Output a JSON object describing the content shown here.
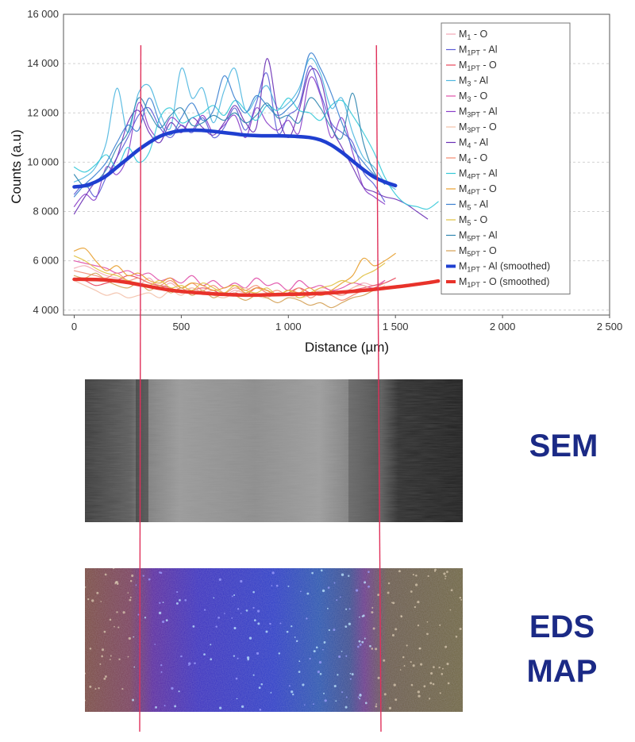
{
  "chart_data": {
    "type": "line",
    "xlabel": "Distance (µm)",
    "ylabel": "Counts (a.u)",
    "xlim": [
      -50,
      2500
    ],
    "ylim": [
      3800,
      16000
    ],
    "x_ticks": [
      0,
      500,
      1000,
      1500,
      2000,
      2500
    ],
    "x_tick_labels": [
      "0",
      "500",
      "1 000",
      "1 500",
      "2 000",
      "2 500"
    ],
    "y_ticks": [
      4000,
      6000,
      8000,
      10000,
      12000,
      14000,
      16000
    ],
    "y_tick_labels": [
      "4 000",
      "6 000",
      "8 000",
      "10 000",
      "12 000",
      "14 000",
      "16 000"
    ],
    "grid": true,
    "legend_position": "top-right",
    "legend": [
      {
        "main": "M",
        "sub": "1",
        "rest": " - O",
        "color": "#f4a6b4"
      },
      {
        "main": "M",
        "sub": "1PT",
        "rest": " - Al",
        "color": "#5b5bd6"
      },
      {
        "main": "M",
        "sub": "1PT",
        "rest": " - O",
        "color": "#e8455a"
      },
      {
        "main": "M",
        "sub": "3",
        "rest": " - Al",
        "color": "#4fb7e0"
      },
      {
        "main": "M",
        "sub": "3",
        "rest": " - O",
        "color": "#e04fa8"
      },
      {
        "main": "M",
        "sub": "3PT",
        "rest": " - Al",
        "color": "#8a3fc9"
      },
      {
        "main": "M",
        "sub": "3PT",
        "rest": " - O",
        "color": "#f3c0a8"
      },
      {
        "main": "M",
        "sub": "4",
        "rest": " - Al",
        "color": "#6a2fb5"
      },
      {
        "main": "M",
        "sub": "4",
        "rest": " - O",
        "color": "#f28a70"
      },
      {
        "main": "M",
        "sub": "4PT",
        "rest": " - Al",
        "color": "#35c9d8"
      },
      {
        "main": "M",
        "sub": "4PT",
        "rest": " - O",
        "color": "#e8a030"
      },
      {
        "main": "M",
        "sub": "5",
        "rest": " - Al",
        "color": "#3a7fd0"
      },
      {
        "main": "M",
        "sub": "5",
        "rest": " - O",
        "color": "#e0c040"
      },
      {
        "main": "M",
        "sub": "5PT",
        "rest": " - Al",
        "color": "#2f86b0"
      },
      {
        "main": "M",
        "sub": "5PT",
        "rest": " - O",
        "color": "#d4a054"
      },
      {
        "main": "M",
        "sub": "1PT",
        "rest": " - Al (smoothed)",
        "color": "#1f3fd0",
        "thick": true
      },
      {
        "main": "M",
        "sub": "1PT",
        "rest": " - O (smoothed)",
        "color": "#e8322a",
        "thick": true
      }
    ],
    "x": [
      0,
      50,
      100,
      150,
      200,
      250,
      300,
      350,
      400,
      450,
      500,
      550,
      600,
      650,
      700,
      750,
      800,
      850,
      900,
      950,
      1000,
      1050,
      1100,
      1150,
      1200,
      1250,
      1300,
      1350,
      1400,
      1450,
      1500,
      1550,
      1600,
      1650,
      1700
    ],
    "series": [
      {
        "name": "M1PT - Al (smoothed)",
        "role": "smooth",
        "values": [
          9000,
          9050,
          9200,
          9450,
          9800,
          10150,
          10500,
          10800,
          11050,
          11200,
          11280,
          11300,
          11290,
          11250,
          11200,
          11150,
          11100,
          11080,
          11070,
          11070,
          11060,
          11040,
          11000,
          10900,
          10700,
          10400,
          10050,
          9700,
          9400,
          9200,
          9050,
          null,
          null,
          null,
          null
        ]
      },
      {
        "name": "M1PT - O (smoothed)",
        "role": "smooth",
        "values": [
          5250,
          5250,
          5240,
          5220,
          5180,
          5120,
          5040,
          4960,
          4880,
          4810,
          4760,
          4720,
          4690,
          4660,
          4640,
          4620,
          4610,
          4610,
          4620,
          4630,
          4640,
          4650,
          4660,
          4680,
          4700,
          4730,
          4760,
          4800,
          4840,
          4890,
          4940,
          4990,
          5050,
          5110,
          5180
        ]
      },
      {
        "name": "M1PT - Al",
        "values": [
          8700,
          9100,
          8600,
          9400,
          10200,
          11000,
          11900,
          12200,
          11400,
          11000,
          11500,
          11200,
          11800,
          11000,
          11400,
          12200,
          11300,
          12400,
          13600,
          11200,
          11900,
          12300,
          13900,
          12800,
          11600,
          11200,
          10800,
          9600,
          9100,
          8400,
          null,
          null,
          null,
          null,
          null
        ]
      },
      {
        "name": "M3 - Al",
        "values": [
          9200,
          9400,
          9800,
          10800,
          13000,
          11200,
          12800,
          13100,
          12000,
          11400,
          13800,
          12600,
          13000,
          11600,
          12900,
          13800,
          12100,
          12600,
          13100,
          12200,
          12400,
          13000,
          14200,
          13600,
          12200,
          12600,
          11200,
          10200,
          9800,
          9200,
          8900,
          null,
          null,
          null,
          null
        ]
      },
      {
        "name": "M3PT - Al",
        "values": [
          8200,
          8700,
          8500,
          9800,
          9500,
          10300,
          12400,
          11400,
          11000,
          11800,
          11500,
          11300,
          11900,
          11200,
          11500,
          11900,
          11000,
          12200,
          11600,
          11300,
          11700,
          11200,
          13400,
          12700,
          11000,
          11800,
          10400,
          9000,
          8600,
          8300,
          null,
          null,
          null,
          null,
          null
        ]
      },
      {
        "name": "M4 - Al",
        "values": [
          7900,
          8600,
          9200,
          9400,
          10200,
          11600,
          12100,
          11200,
          10800,
          11600,
          11200,
          11800,
          11400,
          11100,
          11600,
          12300,
          11600,
          11400,
          14200,
          12000,
          11000,
          12100,
          13700,
          13400,
          11500,
          10600,
          9800,
          9000,
          8800,
          8600,
          8500,
          8300,
          8000,
          7700,
          null
        ]
      },
      {
        "name": "M4PT - Al",
        "values": [
          9800,
          9600,
          9900,
          10300,
          9800,
          10600,
          10000,
          10400,
          11800,
          12200,
          11600,
          11800,
          12000,
          12300,
          11900,
          12500,
          12100,
          11700,
          12300,
          12100,
          12600,
          12100,
          12000,
          11700,
          12300,
          12500,
          11900,
          11200,
          10400,
          9400,
          8700,
          8300,
          8200,
          8100,
          8400
        ]
      },
      {
        "name": "M5 - Al",
        "values": [
          8600,
          9100,
          9500,
          10000,
          10800,
          11500,
          11300,
          12600,
          11600,
          11100,
          11800,
          12400,
          11700,
          12100,
          13500,
          12600,
          12000,
          12700,
          12300,
          11900,
          12200,
          12800,
          14400,
          13800,
          12800,
          11600,
          10600,
          10000,
          9500,
          9200,
          9000,
          null,
          null,
          null,
          null
        ]
      },
      {
        "name": "M5PT - Al",
        "values": [
          9500,
          9000,
          9200,
          9700,
          10600,
          11200,
          12600,
          12000,
          11400,
          11900,
          12200,
          11500,
          11600,
          11900,
          11700,
          12000,
          11600,
          11900,
          12400,
          11800,
          11900,
          11600,
          12600,
          12200,
          11400,
          11000,
          12800,
          10800,
          9600,
          9100,
          null,
          null,
          null,
          null,
          null
        ]
      },
      {
        "name": "M1 - O",
        "values": [
          5700,
          5800,
          5600,
          5400,
          5300,
          5200,
          5000,
          5300,
          4900,
          5100,
          4800,
          4900,
          4700,
          4800,
          4600,
          4800,
          4700,
          4900,
          4700,
          4600,
          4800,
          4700,
          4600,
          4900,
          4800,
          4700,
          4900,
          5100,
          5000,
          5200,
          null,
          null,
          null,
          null,
          null
        ]
      },
      {
        "name": "M1PT - O",
        "values": [
          5300,
          5200,
          5000,
          5100,
          5200,
          5400,
          5300,
          5100,
          5000,
          4900,
          4700,
          4800,
          4900,
          4800,
          4600,
          4700,
          4600,
          4900,
          4800,
          4600,
          4700,
          4900,
          4700,
          4600,
          4700,
          4600,
          4800,
          4900,
          5000,
          5100,
          5300,
          null,
          null,
          null,
          null
        ]
      },
      {
        "name": "M3 - O",
        "values": [
          6000,
          5900,
          5800,
          5700,
          5500,
          5600,
          5400,
          5500,
          5200,
          5300,
          5100,
          5400,
          5000,
          5200,
          4900,
          5100,
          4900,
          5300,
          5000,
          5100,
          4800,
          5200,
          4900,
          5000,
          4800,
          4900,
          5100,
          5000,
          4900,
          5200,
          null,
          null,
          null,
          null,
          null
        ]
      },
      {
        "name": "M3PT - O",
        "values": [
          5200,
          5000,
          4800,
          4600,
          4700,
          4500,
          4600,
          4700,
          4500,
          4800,
          4600,
          4900,
          4700,
          4600,
          4500,
          4700,
          4900,
          4600,
          4500,
          4700,
          4600,
          4500,
          4600,
          4800,
          4700,
          4600,
          4900,
          5000,
          4800,
          5000,
          null,
          null,
          null,
          null,
          null
        ]
      },
      {
        "name": "M4 - O",
        "values": [
          5600,
          5500,
          5400,
          5300,
          5500,
          5200,
          5300,
          5100,
          5000,
          5200,
          4900,
          5100,
          4800,
          5000,
          4700,
          4900,
          4800,
          5000,
          4700,
          4800,
          4600,
          4900,
          4500,
          4700,
          4600,
          4400,
          4600,
          4800,
          4900,
          5100,
          null,
          null,
          null,
          null,
          null
        ]
      },
      {
        "name": "M4PT - O",
        "values": [
          6400,
          6500,
          6000,
          5600,
          5800,
          5400,
          5500,
          5200,
          5100,
          5300,
          4900,
          5100,
          5000,
          4800,
          4900,
          5000,
          4700,
          4900,
          4800,
          4600,
          4800,
          4700,
          4900,
          4600,
          4800,
          5100,
          5400,
          6100,
          5800,
          6000,
          6300,
          null,
          null,
          null,
          null
        ]
      },
      {
        "name": "M5 - O",
        "values": [
          6200,
          6000,
          5700,
          5500,
          5400,
          5200,
          5100,
          5000,
          5200,
          4900,
          5000,
          4800,
          5100,
          4900,
          4700,
          5000,
          4800,
          4700,
          4900,
          4600,
          4800,
          4500,
          4700,
          4900,
          5000,
          5200,
          5100,
          5400,
          5600,
          5900,
          null,
          null,
          null,
          null,
          null
        ]
      },
      {
        "name": "M5PT - O",
        "values": [
          5400,
          5300,
          5500,
          5200,
          5000,
          4900,
          5100,
          4800,
          5000,
          4700,
          4900,
          4600,
          4800,
          4500,
          4700,
          4600,
          4400,
          4600,
          4500,
          4300,
          4500,
          4400,
          4200,
          4300,
          4100,
          4300,
          4500,
          4600,
          4800,
          4900,
          null,
          null,
          null,
          null,
          null
        ]
      }
    ],
    "series_colors": {
      "M1PT - Al (smoothed)": "#1f3fd0",
      "M1PT - O (smoothed)": "#e8322a",
      "M1PT - Al": "#5b5bd6",
      "M3 - Al": "#4fb7e0",
      "M3PT - Al": "#8a3fc9",
      "M4 - Al": "#6a2fb5",
      "M4PT - Al": "#35c9d8",
      "M5 - Al": "#3a7fd0",
      "M5PT - Al": "#2f86b0",
      "M1 - O": "#f4a6b4",
      "M1PT - O": "#e8455a",
      "M3 - O": "#e04fa8",
      "M3PT - O": "#f3c0a8",
      "M4 - O": "#f28a70",
      "M4PT - O": "#e8a030",
      "M5 - O": "#e0c040",
      "M5PT - O": "#d4a054"
    },
    "boundary_lines_x": [
      300,
      1400
    ],
    "boundary_color": "#e0305a"
  },
  "panels": {
    "sem_label": "SEM",
    "eds_label_line1": "EDS",
    "eds_label_line2": "MAP",
    "label_color": "#1b2a86"
  }
}
